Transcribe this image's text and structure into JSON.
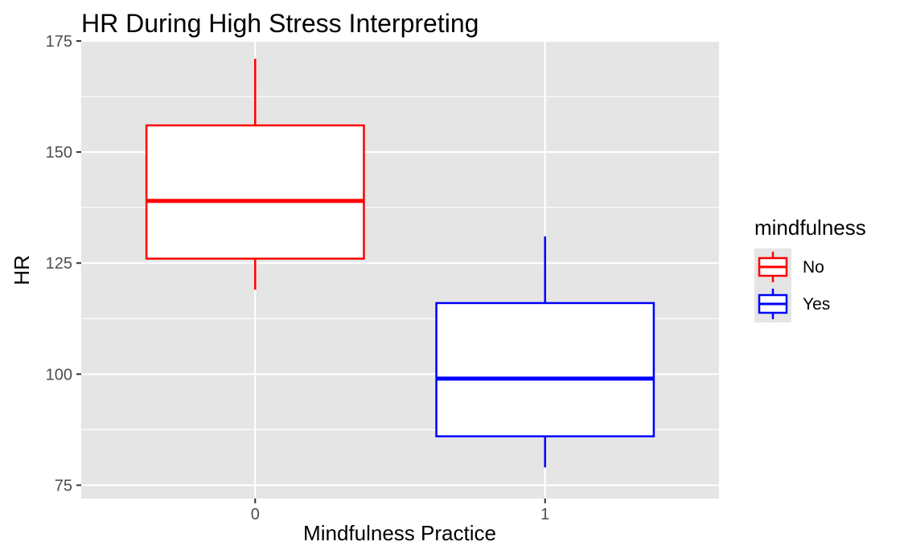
{
  "chart_data": {
    "type": "boxplot",
    "title": "HR During High Stress Interpreting",
    "xlabel": "Mindfulness Practice",
    "ylabel": "HR",
    "categories": [
      "0",
      "1"
    ],
    "ylim": [
      72,
      175
    ],
    "yticks": [
      75,
      100,
      125,
      150,
      175
    ],
    "grid": true,
    "legend": {
      "title": "mindfulness",
      "placement": "right",
      "entries": [
        {
          "label": "No",
          "color": "#ff0000"
        },
        {
          "label": "Yes",
          "color": "#0000ff"
        }
      ]
    },
    "series": [
      {
        "category": "0",
        "group": "No",
        "color": "#ff0000",
        "min": 119,
        "q1": 126,
        "median": 139,
        "q3": 156,
        "max": 171
      },
      {
        "category": "1",
        "group": "Yes",
        "color": "#0000ff",
        "min": 79,
        "q1": 86,
        "median": 99,
        "q3": 116,
        "max": 131
      }
    ]
  },
  "colors": {
    "panel_background": "#e5e5e5",
    "grid": "#ffffff",
    "box_fill": "#ffffff"
  }
}
